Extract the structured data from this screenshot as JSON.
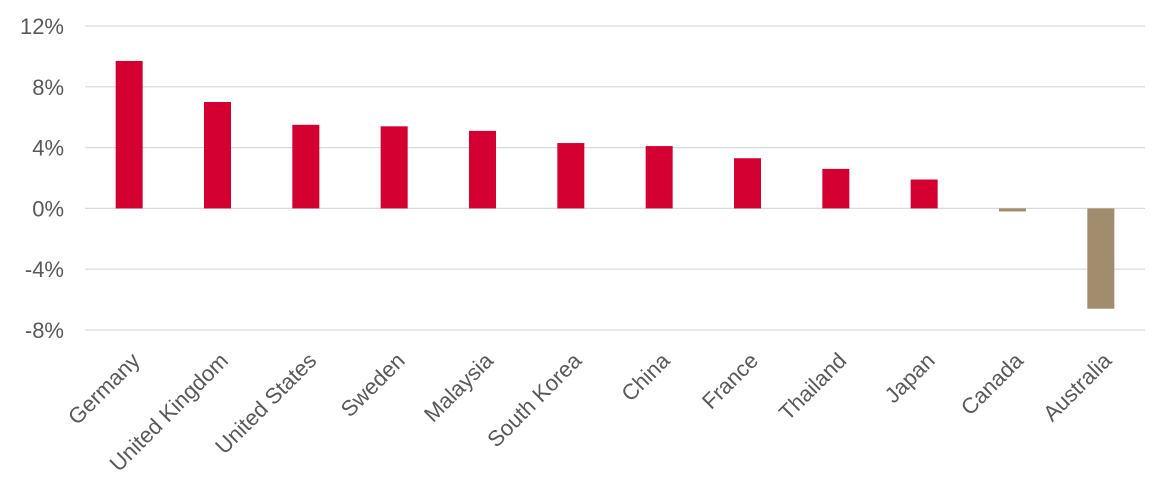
{
  "chart_data": {
    "type": "bar",
    "categories": [
      "Germany",
      "United Kingdom",
      "United States",
      "Sweden",
      "Malaysia",
      "South Korea",
      "China",
      "France",
      "Thailand",
      "Japan",
      "Canada",
      "Australia"
    ],
    "values": [
      9.7,
      7.0,
      5.5,
      5.4,
      5.1,
      4.3,
      4.1,
      3.3,
      2.6,
      1.9,
      -0.2,
      -6.6
    ],
    "ylim": [
      -8,
      12
    ],
    "yticks": [
      -8,
      -4,
      0,
      4,
      8,
      12
    ],
    "ytick_labels": [
      "-8%",
      "-4%",
      "0%",
      "4%",
      "8%",
      "12%"
    ],
    "title": "",
    "xlabel": "",
    "ylabel": "",
    "grid": true,
    "legend": "none",
    "colors": {
      "positive": "#d50032",
      "negative": "#a18c6e"
    }
  }
}
